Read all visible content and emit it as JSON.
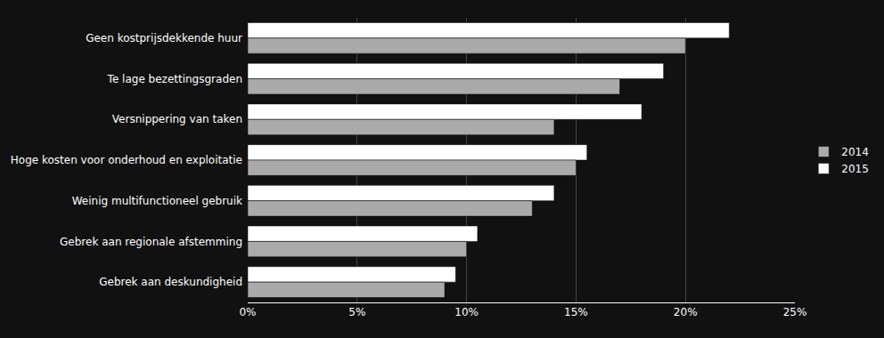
{
  "chart_data": {
    "type": "bar",
    "orientation": "horizontal",
    "categories": [
      "Geen kostprijsdekkende huur",
      "Te lage bezettingsgraden",
      "Versnippering van taken",
      "Hoge kosten voor onderhoud en exploitatie",
      "Weinig multifunctioneel gebruik",
      "Gebrek aan regionale afstemming",
      "Gebrek aan deskundigheid"
    ],
    "series": [
      {
        "name": "2014",
        "color": "#aaaaaa",
        "values": [
          0.2,
          0.17,
          0.14,
          0.15,
          0.13,
          0.1,
          0.09
        ]
      },
      {
        "name": "2015",
        "color": "#ffffff",
        "values": [
          0.22,
          0.19,
          0.18,
          0.155,
          0.14,
          0.105,
          0.095
        ]
      }
    ],
    "xlim": [
      0,
      0.25
    ],
    "xticks": [
      {
        "value": 0.0,
        "label": "0%"
      },
      {
        "value": 0.05,
        "label": "5%"
      },
      {
        "value": 0.1,
        "label": "10%"
      },
      {
        "value": 0.15,
        "label": "15%"
      },
      {
        "value": 0.2,
        "label": "20%"
      },
      {
        "value": 0.25,
        "label": "25%"
      }
    ],
    "grid": true,
    "legend": "right"
  }
}
